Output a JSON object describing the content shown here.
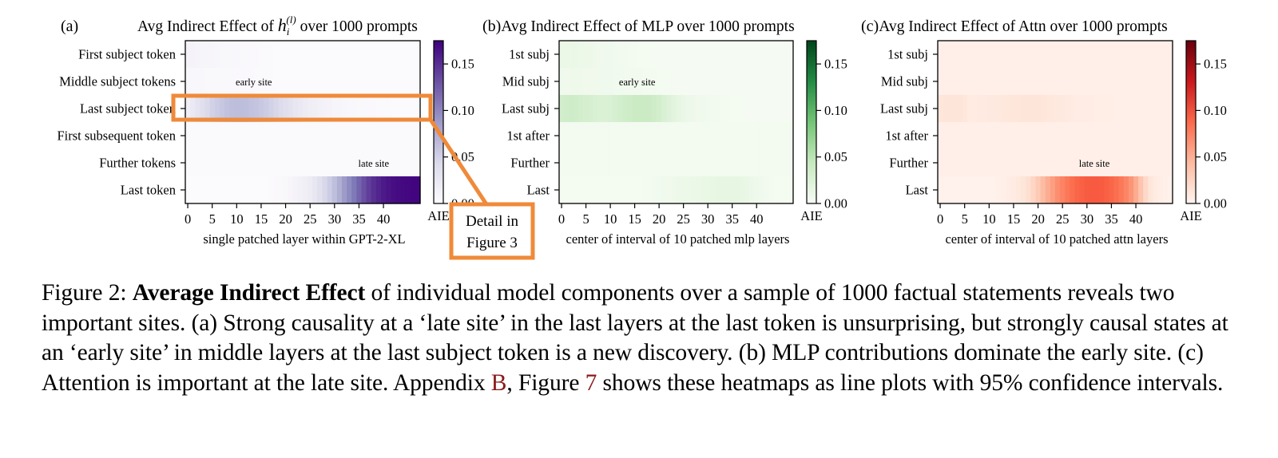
{
  "chart_data": [
    {
      "type": "heatmap",
      "panel_label": "(a)",
      "title_prefix": "Avg Indirect Effect of ",
      "title_symbol": "h",
      "title_sub": "i",
      "title_sup": "(l)",
      "title_suffix": " over 1000 prompts",
      "xlabel": "single patched layer within GPT-2-XL",
      "x_ticks": [
        0,
        5,
        10,
        15,
        20,
        25,
        30,
        35,
        40
      ],
      "x_range": [
        0,
        47
      ],
      "rows": [
        "First subject token",
        "Middle subject tokens",
        "Last subject token",
        "First subsequent token",
        "Further tokens",
        "Last token"
      ],
      "colormap": "Purples",
      "colorbar_label": "AIE",
      "colorbar_ticks": [
        "0.00",
        "0.05",
        "0.10",
        "0.15"
      ],
      "color_range": [
        0,
        0.175
      ],
      "annotations": [
        {
          "text": "early site",
          "layer": 13.5,
          "row": 1
        },
        {
          "text": "late site",
          "layer": 38,
          "row": 4
        }
      ],
      "values": [
        [
          0.012,
          0.012,
          0.011,
          0.01,
          0.01,
          0.009,
          0.008,
          0.007,
          0.007,
          0.006,
          0.006,
          0.005,
          0.005,
          0.004,
          0.004,
          0.003,
          0.003,
          0.003,
          0.002,
          0.002,
          0.002,
          0.002,
          0.001,
          0.001,
          0.001,
          0.001,
          0.001,
          0.001,
          0.001,
          0.001,
          0.001,
          0.001,
          0.001,
          0.001,
          0.001,
          0.001,
          0.001,
          0.001,
          0.001,
          0.001,
          0.001,
          0.001,
          0.001,
          0.001,
          0.001,
          0.001,
          0.001,
          0.001
        ],
        [
          0.006,
          0.006,
          0.006,
          0.006,
          0.005,
          0.005,
          0.005,
          0.005,
          0.005,
          0.004,
          0.004,
          0.004,
          0.004,
          0.004,
          0.003,
          0.003,
          0.003,
          0.003,
          0.002,
          0.002,
          0.002,
          0.002,
          0.002,
          0.001,
          0.001,
          0.001,
          0.001,
          0.001,
          0.001,
          0.001,
          0.001,
          0.001,
          0.001,
          0.001,
          0.001,
          0.001,
          0.001,
          0.001,
          0.001,
          0.001,
          0.001,
          0.001,
          0.001,
          0.001,
          0.001,
          0.001,
          0.001,
          0.001
        ],
        [
          0.02,
          0.026,
          0.032,
          0.038,
          0.044,
          0.05,
          0.054,
          0.058,
          0.062,
          0.064,
          0.065,
          0.065,
          0.064,
          0.062,
          0.06,
          0.057,
          0.054,
          0.05,
          0.046,
          0.042,
          0.038,
          0.034,
          0.03,
          0.027,
          0.024,
          0.021,
          0.018,
          0.016,
          0.014,
          0.012,
          0.01,
          0.009,
          0.008,
          0.007,
          0.006,
          0.005,
          0.005,
          0.004,
          0.004,
          0.003,
          0.003,
          0.003,
          0.002,
          0.002,
          0.002,
          0.002,
          0.002,
          0.002
        ],
        [
          0.003,
          0.003,
          0.003,
          0.003,
          0.003,
          0.003,
          0.003,
          0.003,
          0.003,
          0.003,
          0.003,
          0.003,
          0.003,
          0.003,
          0.003,
          0.003,
          0.003,
          0.003,
          0.003,
          0.003,
          0.003,
          0.003,
          0.003,
          0.003,
          0.003,
          0.003,
          0.003,
          0.003,
          0.003,
          0.003,
          0.003,
          0.003,
          0.003,
          0.003,
          0.003,
          0.003,
          0.003,
          0.003,
          0.003,
          0.003,
          0.003,
          0.003,
          0.003,
          0.003,
          0.003,
          0.003,
          0.003,
          0.003
        ],
        [
          0.003,
          0.003,
          0.003,
          0.003,
          0.003,
          0.003,
          0.003,
          0.003,
          0.003,
          0.003,
          0.003,
          0.003,
          0.003,
          0.003,
          0.003,
          0.003,
          0.003,
          0.003,
          0.003,
          0.003,
          0.003,
          0.003,
          0.003,
          0.003,
          0.003,
          0.003,
          0.003,
          0.003,
          0.003,
          0.003,
          0.003,
          0.003,
          0.003,
          0.003,
          0.003,
          0.003,
          0.003,
          0.003,
          0.003,
          0.003,
          0.003,
          0.003,
          0.003,
          0.003,
          0.003,
          0.003,
          0.003,
          0.003
        ],
        [
          0.001,
          0.001,
          0.001,
          0.001,
          0.001,
          0.001,
          0.001,
          0.001,
          0.001,
          0.001,
          0.001,
          0.001,
          0.001,
          0.001,
          0.002,
          0.002,
          0.002,
          0.003,
          0.004,
          0.005,
          0.007,
          0.009,
          0.012,
          0.015,
          0.019,
          0.024,
          0.03,
          0.037,
          0.045,
          0.054,
          0.064,
          0.075,
          0.087,
          0.099,
          0.111,
          0.122,
          0.132,
          0.141,
          0.149,
          0.155,
          0.16,
          0.164,
          0.167,
          0.169,
          0.17,
          0.171,
          0.172,
          0.172
        ]
      ]
    },
    {
      "type": "heatmap",
      "panel_label": "(b)",
      "title": "Avg Indirect Effect of MLP over 1000 prompts",
      "xlabel": "center of interval of 10 patched mlp layers",
      "x_ticks": [
        0,
        5,
        10,
        15,
        20,
        25,
        30,
        35,
        40
      ],
      "x_range": [
        0,
        47
      ],
      "rows": [
        "1st subj",
        "Mid subj",
        "Last subj",
        "1st after",
        "Further",
        "Last"
      ],
      "colormap": "Greens",
      "colorbar_label": "AIE",
      "colorbar_ticks": [
        "0.00",
        "0.05",
        "0.10",
        "0.15"
      ],
      "color_range": [
        0,
        0.175
      ],
      "annotations": [
        {
          "text": "early site",
          "layer": 15.5,
          "row": 1
        }
      ],
      "values": [
        [
          0.014,
          0.015,
          0.015,
          0.014,
          0.013,
          0.012,
          0.011,
          0.01,
          0.009,
          0.008,
          0.008,
          0.007,
          0.006,
          0.006,
          0.005,
          0.005,
          0.004,
          0.004,
          0.004,
          0.003,
          0.003,
          0.003,
          0.003,
          0.003,
          0.002,
          0.002,
          0.002,
          0.002,
          0.002,
          0.002,
          0.002,
          0.002,
          0.002,
          0.002,
          0.002,
          0.002,
          0.002,
          0.002,
          0.002,
          0.002,
          0.002,
          0.002,
          0.002,
          0.002,
          0.002,
          0.002,
          0.002,
          0.002
        ],
        [
          0.008,
          0.009,
          0.01,
          0.01,
          0.01,
          0.009,
          0.009,
          0.009,
          0.008,
          0.008,
          0.008,
          0.007,
          0.007,
          0.007,
          0.006,
          0.006,
          0.006,
          0.005,
          0.005,
          0.005,
          0.004,
          0.004,
          0.004,
          0.003,
          0.003,
          0.003,
          0.003,
          0.002,
          0.002,
          0.002,
          0.002,
          0.002,
          0.002,
          0.002,
          0.002,
          0.002,
          0.002,
          0.002,
          0.002,
          0.002,
          0.002,
          0.002,
          0.002,
          0.002,
          0.002,
          0.002,
          0.002,
          0.002
        ],
        [
          0.036,
          0.037,
          0.038,
          0.037,
          0.035,
          0.034,
          0.032,
          0.031,
          0.03,
          0.03,
          0.031,
          0.033,
          0.035,
          0.037,
          0.039,
          0.04,
          0.041,
          0.041,
          0.04,
          0.038,
          0.035,
          0.031,
          0.027,
          0.023,
          0.019,
          0.016,
          0.013,
          0.011,
          0.009,
          0.008,
          0.007,
          0.006,
          0.006,
          0.005,
          0.005,
          0.004,
          0.004,
          0.004,
          0.003,
          0.003,
          0.003,
          0.003,
          0.003,
          0.003,
          0.003,
          0.003,
          0.003,
          0.003
        ],
        [
          0.005,
          0.005,
          0.005,
          0.005,
          0.005,
          0.005,
          0.005,
          0.005,
          0.005,
          0.005,
          0.005,
          0.005,
          0.005,
          0.005,
          0.005,
          0.005,
          0.005,
          0.005,
          0.005,
          0.005,
          0.005,
          0.005,
          0.005,
          0.005,
          0.005,
          0.005,
          0.005,
          0.005,
          0.005,
          0.005,
          0.005,
          0.005,
          0.005,
          0.005,
          0.005,
          0.005,
          0.005,
          0.005,
          0.005,
          0.005,
          0.005,
          0.005,
          0.005,
          0.005,
          0.005,
          0.005,
          0.005,
          0.005
        ],
        [
          0.005,
          0.005,
          0.005,
          0.005,
          0.005,
          0.005,
          0.005,
          0.005,
          0.005,
          0.005,
          0.005,
          0.005,
          0.005,
          0.005,
          0.005,
          0.005,
          0.005,
          0.005,
          0.005,
          0.005,
          0.005,
          0.005,
          0.005,
          0.005,
          0.005,
          0.005,
          0.005,
          0.005,
          0.005,
          0.005,
          0.005,
          0.005,
          0.005,
          0.005,
          0.005,
          0.005,
          0.005,
          0.005,
          0.005,
          0.005,
          0.005,
          0.005,
          0.005,
          0.005,
          0.005,
          0.005,
          0.005,
          0.005
        ],
        [
          0.004,
          0.004,
          0.004,
          0.004,
          0.004,
          0.004,
          0.004,
          0.004,
          0.004,
          0.004,
          0.004,
          0.004,
          0.004,
          0.004,
          0.004,
          0.004,
          0.004,
          0.005,
          0.005,
          0.006,
          0.007,
          0.008,
          0.009,
          0.01,
          0.011,
          0.012,
          0.013,
          0.014,
          0.015,
          0.016,
          0.017,
          0.018,
          0.019,
          0.02,
          0.02,
          0.02,
          0.019,
          0.018,
          0.016,
          0.013,
          0.01,
          0.008,
          0.006,
          0.005,
          0.004,
          0.004,
          0.004,
          0.004
        ]
      ]
    },
    {
      "type": "heatmap",
      "panel_label": "(c)",
      "title": "Avg Indirect Effect of Attn over 1000 prompts",
      "xlabel": "center of interval of 10 patched attn layers",
      "x_ticks": [
        0,
        5,
        10,
        15,
        20,
        25,
        30,
        35,
        40
      ],
      "x_range": [
        0,
        47
      ],
      "rows": [
        "1st subj",
        "Mid subj",
        "Last subj",
        "1st after",
        "Further",
        "Last"
      ],
      "colormap": "Reds",
      "colorbar_label": "AIE",
      "colorbar_ticks": [
        "0.00",
        "0.05",
        "0.10",
        "0.15"
      ],
      "color_range": [
        0,
        0.175
      ],
      "annotations": [
        {
          "text": "late site",
          "layer": 31.5,
          "row": 4
        }
      ],
      "values": [
        [
          0.006,
          0.006,
          0.006,
          0.006,
          0.006,
          0.006,
          0.006,
          0.006,
          0.006,
          0.006,
          0.006,
          0.006,
          0.006,
          0.006,
          0.006,
          0.006,
          0.006,
          0.006,
          0.006,
          0.006,
          0.006,
          0.006,
          0.006,
          0.006,
          0.006,
          0.006,
          0.006,
          0.006,
          0.006,
          0.006,
          0.006,
          0.006,
          0.006,
          0.006,
          0.006,
          0.006,
          0.006,
          0.006,
          0.006,
          0.006,
          0.006,
          0.006,
          0.006,
          0.006,
          0.006,
          0.006,
          0.006,
          0.006
        ],
        [
          0.006,
          0.006,
          0.006,
          0.006,
          0.006,
          0.006,
          0.006,
          0.006,
          0.006,
          0.006,
          0.006,
          0.006,
          0.006,
          0.006,
          0.006,
          0.006,
          0.006,
          0.006,
          0.006,
          0.006,
          0.006,
          0.006,
          0.006,
          0.006,
          0.006,
          0.006,
          0.006,
          0.006,
          0.006,
          0.006,
          0.006,
          0.006,
          0.006,
          0.006,
          0.006,
          0.006,
          0.006,
          0.006,
          0.006,
          0.006,
          0.006,
          0.006,
          0.006,
          0.006,
          0.006,
          0.006,
          0.006,
          0.006
        ],
        [
          0.016,
          0.017,
          0.017,
          0.017,
          0.017,
          0.016,
          0.01,
          0.01,
          0.011,
          0.011,
          0.012,
          0.012,
          0.013,
          0.014,
          0.015,
          0.016,
          0.016,
          0.017,
          0.017,
          0.017,
          0.017,
          0.016,
          0.015,
          0.014,
          0.013,
          0.012,
          0.011,
          0.01,
          0.009,
          0.009,
          0.008,
          0.008,
          0.007,
          0.007,
          0.007,
          0.007,
          0.006,
          0.006,
          0.006,
          0.006,
          0.006,
          0.006,
          0.006,
          0.006,
          0.006,
          0.006,
          0.006,
          0.006
        ],
        [
          0.006,
          0.006,
          0.006,
          0.006,
          0.006,
          0.006,
          0.006,
          0.006,
          0.006,
          0.006,
          0.006,
          0.006,
          0.006,
          0.006,
          0.006,
          0.006,
          0.006,
          0.006,
          0.006,
          0.006,
          0.006,
          0.006,
          0.006,
          0.006,
          0.006,
          0.006,
          0.006,
          0.006,
          0.006,
          0.006,
          0.006,
          0.006,
          0.006,
          0.006,
          0.006,
          0.006,
          0.006,
          0.006,
          0.006,
          0.006,
          0.006,
          0.006,
          0.006,
          0.006,
          0.006,
          0.006,
          0.006,
          0.006
        ],
        [
          0.006,
          0.006,
          0.006,
          0.006,
          0.006,
          0.006,
          0.006,
          0.006,
          0.006,
          0.006,
          0.006,
          0.006,
          0.006,
          0.006,
          0.006,
          0.006,
          0.006,
          0.006,
          0.006,
          0.006,
          0.006,
          0.006,
          0.006,
          0.006,
          0.006,
          0.006,
          0.006,
          0.006,
          0.006,
          0.006,
          0.006,
          0.006,
          0.006,
          0.006,
          0.006,
          0.006,
          0.006,
          0.006,
          0.006,
          0.006,
          0.006,
          0.006,
          0.006,
          0.006,
          0.006,
          0.006,
          0.006,
          0.006
        ],
        [
          0.004,
          0.004,
          0.004,
          0.004,
          0.004,
          0.004,
          0.004,
          0.004,
          0.004,
          0.004,
          0.004,
          0.004,
          0.005,
          0.006,
          0.008,
          0.01,
          0.013,
          0.017,
          0.022,
          0.028,
          0.035,
          0.043,
          0.051,
          0.059,
          0.067,
          0.074,
          0.08,
          0.085,
          0.089,
          0.092,
          0.094,
          0.095,
          0.095,
          0.094,
          0.092,
          0.089,
          0.085,
          0.08,
          0.073,
          0.064,
          0.052,
          0.038,
          0.026,
          0.016,
          0.01,
          0.007,
          0.005,
          0.004
        ]
      ]
    }
  ],
  "callout": {
    "line1": "Detail in",
    "line2": "Figure 3",
    "border_color": "#ef8a3a"
  },
  "caption": {
    "prefix": "Figure 2:",
    "bold": "Average Indirect Effect",
    "text1": " of individual model components over a sample of 1000 factual statements reveals two important sites. (a) Strong causality at a ‘late site’ in the last layers at the last token is unsurprising, but strongly causal states at an ‘early site’ in middle layers at the last subject token is a new discovery. (b) MLP contributions dominate the early site. (c) Attention is important at the late site. Appendix ",
    "ref1": "B",
    "text2": ", Figure ",
    "ref2": "7",
    "text3": " shows these heatmaps as line plots with 95% confidence intervals.",
    "link_color": "#8b1a1a"
  }
}
